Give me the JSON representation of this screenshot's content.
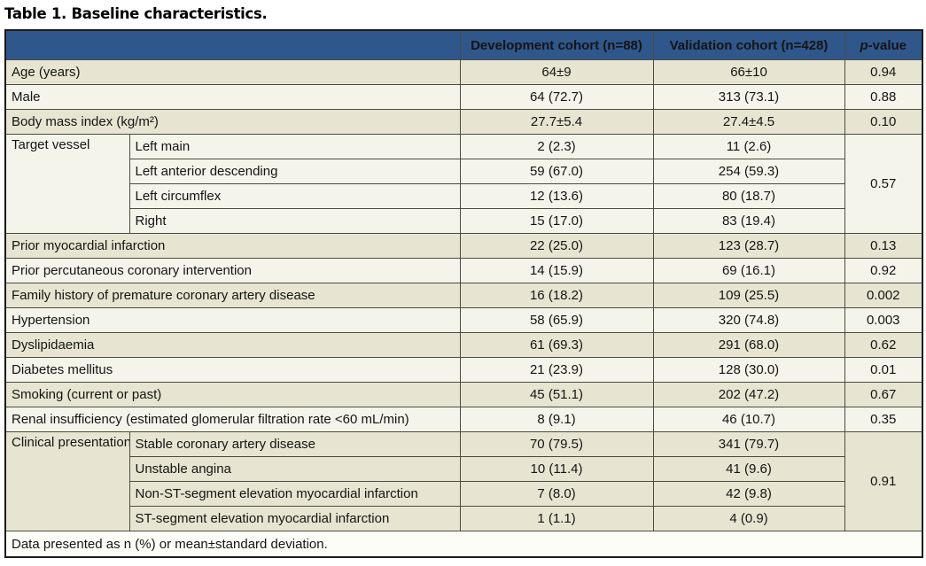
{
  "title": "Table 1. Baseline characteristics.",
  "colors": {
    "header_bg": "#30578b",
    "row_beige": "#e7e5d1",
    "row_light": "#f5f4ea",
    "border": "#4b4b40"
  },
  "table": {
    "header": {
      "empty": "",
      "dev": "Development cohort (n=88)",
      "val": "Validation cohort (n=428)",
      "p_italic": "p",
      "p_rest": "-value"
    },
    "rows": [
      {
        "kind": "simple",
        "shade": "beige",
        "label": "Age (years)",
        "dev": "64±9",
        "val": "66±10",
        "p": "0.94"
      },
      {
        "kind": "simple",
        "shade": "light",
        "label": "Male",
        "dev": "64 (72.7)",
        "val": "313 (73.1)",
        "p": "0.88"
      },
      {
        "kind": "simple",
        "shade": "beige",
        "label": "Body mass index (kg/m²)",
        "dev": "27.7±5.4",
        "val": "27.4±4.5",
        "p": "0.10"
      },
      {
        "kind": "group",
        "shade": "light",
        "label": "Target vessel",
        "p": "0.57",
        "subrows": [
          {
            "label": "Left main",
            "dev": "2 (2.3)",
            "val": "11 (2.6)"
          },
          {
            "label": "Left anterior descending",
            "dev": "59 (67.0)",
            "val": "254 (59.3)"
          },
          {
            "label": "Left circumflex",
            "dev": "12 (13.6)",
            "val": "80 (18.7)"
          },
          {
            "label": "Right",
            "dev": "15 (17.0)",
            "val": "83 (19.4)"
          }
        ]
      },
      {
        "kind": "simple",
        "shade": "beige",
        "label": "Prior myocardial infarction",
        "dev": "22 (25.0)",
        "val": "123 (28.7)",
        "p": "0.13"
      },
      {
        "kind": "simple",
        "shade": "light",
        "label": "Prior percutaneous coronary intervention",
        "dev": "14 (15.9)",
        "val": "69 (16.1)",
        "p": "0.92"
      },
      {
        "kind": "simple",
        "shade": "beige",
        "label": "Family history of premature coronary artery disease",
        "dev": "16 (18.2)",
        "val": "109 (25.5)",
        "p": "0.002"
      },
      {
        "kind": "simple",
        "shade": "light",
        "label": "Hypertension",
        "dev": "58 (65.9)",
        "val": "320 (74.8)",
        "p": "0.003"
      },
      {
        "kind": "simple",
        "shade": "beige",
        "label": "Dyslipidaemia",
        "dev": "61 (69.3)",
        "val": "291 (68.0)",
        "p": "0.62"
      },
      {
        "kind": "simple",
        "shade": "light",
        "label": "Diabetes mellitus",
        "dev": "21 (23.9)",
        "val": "128 (30.0)",
        "p": "0.01"
      },
      {
        "kind": "simple",
        "shade": "beige",
        "label": "Smoking (current or past)",
        "dev": "45 (51.1)",
        "val": "202 (47.2)",
        "p": "0.67"
      },
      {
        "kind": "simple",
        "shade": "light",
        "label": "Renal insufficiency (estimated glomerular filtration rate <60 mL/min)",
        "dev": "8 (9.1)",
        "val": "46 (10.7)",
        "p": "0.35"
      },
      {
        "kind": "group",
        "shade": "beige",
        "label": "Clinical presentation",
        "p": "0.91",
        "subrows": [
          {
            "label": "Stable coronary artery disease",
            "dev": "70 (79.5)",
            "val": "341 (79.7)"
          },
          {
            "label": "Unstable angina",
            "dev": "10 (11.4)",
            "val": "41 (9.6)"
          },
          {
            "label": "Non-ST-segment elevation myocardial infarction",
            "dev": "7 (8.0)",
            "val": "42 (9.8)"
          },
          {
            "label": "ST-segment elevation myocardial infarction",
            "dev": "1 (1.1)",
            "val": "4 (0.9)"
          }
        ]
      }
    ],
    "footnote": "Data presented as n (%) or mean±standard deviation."
  }
}
